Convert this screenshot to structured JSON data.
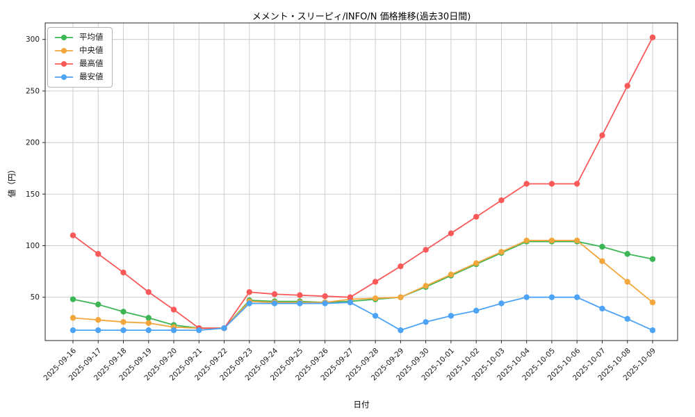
{
  "chart_data": {
    "type": "line",
    "title": "メメント・スリーピィ/INFO/N 価格推移(過去30日間)",
    "xlabel": "日付",
    "ylabel": "値（円）",
    "categories": [
      "2025-09-16",
      "2025-09-17",
      "2025-09-18",
      "2025-09-19",
      "2025-09-20",
      "2025-09-21",
      "2025-09-22",
      "2025-09-23",
      "2025-09-24",
      "2025-09-25",
      "2025-09-26",
      "2025-09-27",
      "2025-09-28",
      "2025-09-29",
      "2025-09-30",
      "2025-10-01",
      "2025-10-02",
      "2025-10-03",
      "2025-10-04",
      "2025-10-05",
      "2025-10-06",
      "2025-10-07",
      "2025-10-08",
      "2025-10-09"
    ],
    "series": [
      {
        "id": "average",
        "name": "平均値",
        "color": "#3cb554",
        "values": [
          48,
          43,
          36,
          30,
          23,
          20,
          20,
          47,
          46,
          46,
          45,
          46,
          48,
          50,
          60,
          71,
          82,
          93,
          104,
          104,
          104,
          99,
          92,
          87
        ]
      },
      {
        "id": "median",
        "name": "中央値",
        "color": "#f2a63b",
        "values": [
          30,
          28,
          26,
          25,
          21,
          20,
          20,
          46,
          45,
          45,
          45,
          48,
          49,
          50,
          61,
          72,
          83,
          94,
          105,
          105,
          105,
          85,
          65,
          45
        ]
      },
      {
        "id": "max",
        "name": "最高値",
        "color": "#f95959",
        "values": [
          110,
          92,
          74,
          55,
          38,
          20,
          20,
          55,
          53,
          52,
          51,
          50,
          65,
          80,
          96,
          112,
          128,
          144,
          160,
          160,
          160,
          207,
          255,
          302
        ]
      },
      {
        "id": "min",
        "name": "最安値",
        "color": "#4da3f5",
        "values": [
          18,
          18,
          18,
          18,
          18,
          18,
          20,
          44,
          44,
          44,
          44,
          45,
          32,
          18,
          26,
          32,
          37,
          44,
          50,
          50,
          50,
          39,
          29,
          18
        ]
      }
    ],
    "ylim": [
      8,
      316
    ],
    "yticks": [
      50,
      100,
      150,
      200,
      250,
      300
    ],
    "grid": true,
    "legend_position": "upper-left"
  }
}
